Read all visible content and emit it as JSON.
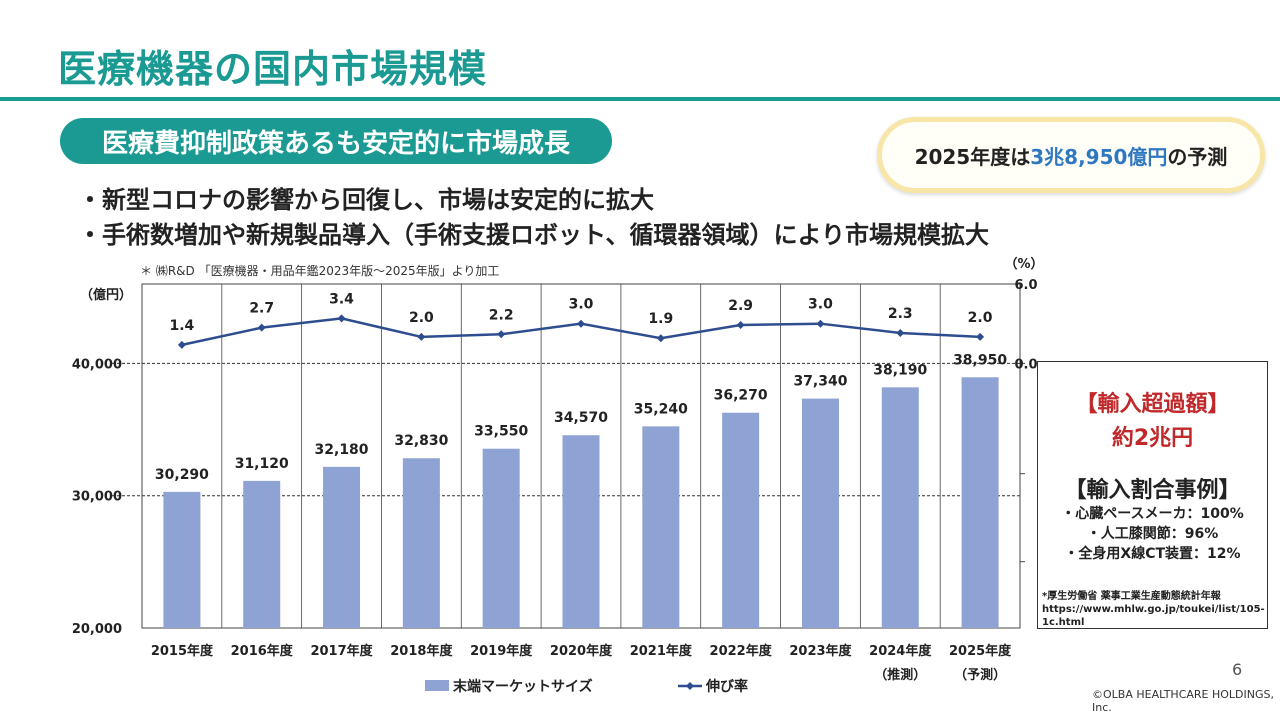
{
  "page": {
    "title": "医療機器の国内市場規模",
    "headline": "医療費抑制政策あるも安定的に市場成長",
    "callout": {
      "prefix": "2025年度は",
      "highlight": "3兆8,950億円",
      "suffix": "の予測"
    },
    "bullets": [
      "・新型コロナの影響から回復し、市場は安定的に拡大",
      "・手術数増加や新規製品導入（手術支援ロボット、循環器領域）により市場規模拡大"
    ],
    "source_note": "＊ ㈱R&D 「医療機器・用品年鑑2023年版〜2025年版」より加工",
    "sidebox": {
      "heading1": "【輸入超過額】",
      "heading2": "約2兆円",
      "heading3": "【輸入割合事例】",
      "items": [
        "・心臓ペースメーカ：100%",
        "・人工膝関節：96%",
        "・全身用X線CT装置：12%"
      ],
      "source1": "*厚生労働省 薬事工業生産動態統計年報",
      "source2": "https://www.mhlw.go.jp/toukei/list/105-1c.html"
    },
    "page_number": "6",
    "copyright": "©OLBA HEALTHCARE HOLDINGS, Inc."
  },
  "colors": {
    "teal": "#1a9a93",
    "bar": "#8fa2d4",
    "line": "#2e4d8f",
    "red": "#c0282a",
    "blue": "#2f78c0"
  },
  "chart_data": {
    "type": "bar",
    "categories": [
      "2015年度",
      "2016年度",
      "2017年度",
      "2018年度",
      "2019年度",
      "2020年度",
      "2021年度",
      "2022年度",
      "2023年度",
      "2024年度",
      "2025年度"
    ],
    "category_notes": [
      "",
      "",
      "",
      "",
      "",
      "",
      "",
      "",
      "",
      "（推測）",
      "（予測）"
    ],
    "series": [
      {
        "name": "末端マーケットサイズ",
        "type": "bar",
        "axis": "left",
        "values": [
          30290,
          31120,
          32180,
          32830,
          33550,
          34570,
          35240,
          36270,
          37340,
          38190,
          38950
        ],
        "labels": [
          "30,290",
          "31,120",
          "32,180",
          "32,830",
          "33,550",
          "34,570",
          "35,240",
          "36,270",
          "37,340",
          "38,190",
          "38,950"
        ]
      },
      {
        "name": "伸び率",
        "type": "line",
        "axis": "right",
        "values": [
          1.4,
          2.7,
          3.4,
          2.0,
          2.2,
          3.0,
          1.9,
          2.9,
          3.0,
          2.3,
          2.0
        ],
        "labels": [
          "1.4",
          "2.7",
          "3.4",
          "2.0",
          "2.2",
          "3.0",
          "1.9",
          "2.9",
          "3.0",
          "2.3",
          "2.0"
        ]
      }
    ],
    "y_left": {
      "label": "（億円）",
      "ticks": [
        20000,
        30000,
        40000
      ],
      "tick_labels": [
        "20,000",
        "30,000",
        "40,000"
      ],
      "ylim": [
        20000,
        46000
      ]
    },
    "y_right": {
      "label": "（%）",
      "ticks": [
        0,
        6
      ],
      "tick_labels": [
        "0.0",
        "6.0"
      ],
      "ylim": [
        -20,
        6
      ]
    },
    "legend": "bottom"
  }
}
